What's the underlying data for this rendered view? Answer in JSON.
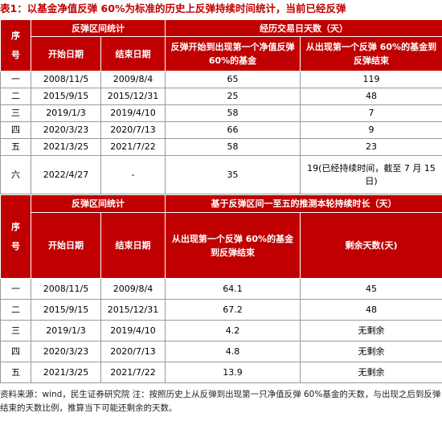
{
  "title": "表1：以基金净值反弹 60%为标准的历史上反弹持续时间统计，当前已经反弹",
  "table1": {
    "header": {
      "index": "序号",
      "range": "反弹区间统计",
      "days": "经历交易日天数（天）",
      "start": "开始日期",
      "end": "结束日期",
      "col3": "反弹开始到出现第一个净值反弹 60%的基金",
      "col4": "从出现第一个反弹 60%的基金到反弹结束"
    },
    "rows": [
      [
        "一",
        "2008/11/5",
        "2009/8/4",
        "65",
        "119"
      ],
      [
        "二",
        "2015/9/15",
        "2015/12/31",
        "25",
        "48"
      ],
      [
        "三",
        "2019/1/3",
        "2019/4/10",
        "58",
        "7"
      ],
      [
        "四",
        "2020/3/23",
        "2020/7/13",
        "66",
        "9"
      ],
      [
        "五",
        "2021/3/25",
        "2021/7/22",
        "58",
        "23"
      ],
      [
        "六",
        "2022/4/27",
        "-",
        "35",
        "19(已经持续时间，截至 7 月 15 日)"
      ]
    ]
  },
  "table2": {
    "header": {
      "index": "序号",
      "range": "反弹区间统计",
      "days": "基于反弹区间一至五的推测本轮持续时长（天）",
      "start": "开始日期",
      "end": "结束日期",
      "col3": "从出现第一个反弹 60%的基金到反弹结束",
      "col4": "剩余天数(天)"
    },
    "rows": [
      [
        "一",
        "2008/11/5",
        "2009/8/4",
        "64.1",
        "45"
      ],
      [
        "二",
        "2015/9/15",
        "2015/12/31",
        "67.2",
        "48"
      ],
      [
        "三",
        "2019/1/3",
        "2019/4/10",
        "4.2",
        "无剩余"
      ],
      [
        "四",
        "2020/3/23",
        "2020/7/13",
        "4.8",
        "无剩余"
      ],
      [
        "五",
        "2021/3/25",
        "2021/7/22",
        "13.9",
        "无剩余"
      ]
    ]
  },
  "note": "资料来源：wind，民生证券研究院 注：按照历史上从反弹到出现第一只净值反弹 60%基金的天数，与出现之后到反弹结束的天数比例，推算当下可能还剩余的天数。"
}
